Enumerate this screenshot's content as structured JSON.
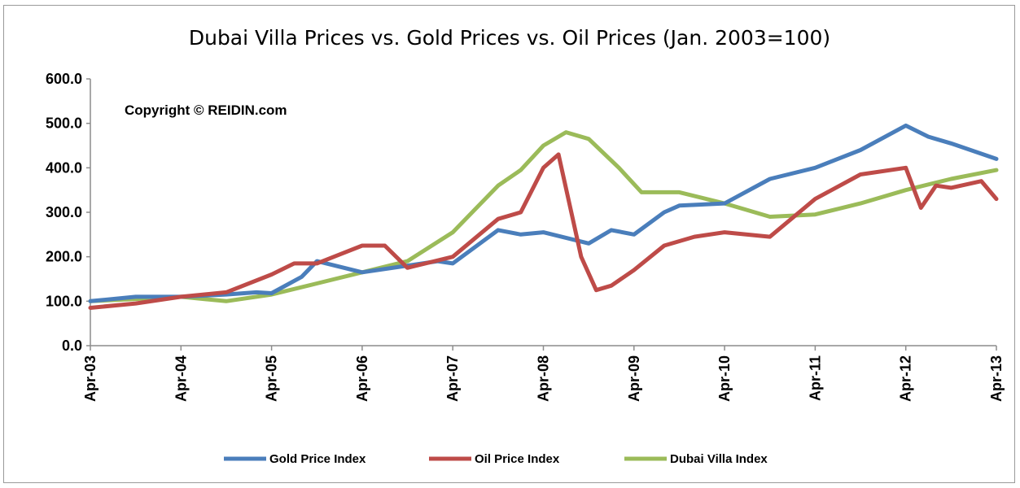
{
  "chart_data": {
    "type": "line",
    "title": "Dubai Villa Prices vs. Gold Prices vs. Oil Prices (Jan. 2003=100)",
    "annotation": "Copyright © REIDIN.com",
    "xlabel": "",
    "ylabel": "",
    "ylim": [
      0,
      600
    ],
    "y_ticks": [
      "0.0",
      "100.0",
      "200.0",
      "300.0",
      "400.0",
      "500.0",
      "600.0"
    ],
    "x_tick_labels": [
      "Apr-03",
      "Apr-04",
      "Apr-05",
      "Apr-06",
      "Apr-07",
      "Apr-08",
      "Apr-09",
      "Apr-10",
      "Apr-11",
      "Apr-12",
      "Apr-13"
    ],
    "x_range": [
      0,
      120
    ],
    "grid": false,
    "legend_position": "bottom",
    "series": [
      {
        "name": "Gold Price Index",
        "color": "#4a7ebb",
        "x": [
          0,
          6,
          12,
          18,
          22,
          24,
          28,
          30,
          36,
          42,
          46,
          48,
          54,
          57,
          60,
          66,
          69,
          72,
          76,
          78,
          84,
          90,
          96,
          102,
          108,
          111,
          114,
          120
        ],
        "y": [
          100,
          110,
          110,
          115,
          120,
          118,
          155,
          190,
          165,
          180,
          190,
          185,
          260,
          250,
          255,
          230,
          260,
          250,
          300,
          315,
          320,
          375,
          400,
          440,
          495,
          470,
          455,
          420
        ]
      },
      {
        "name": "Oil Price Index",
        "color": "#be4b48",
        "x": [
          0,
          6,
          12,
          18,
          24,
          27,
          30,
          33,
          36,
          39,
          42,
          48,
          54,
          57,
          60,
          62,
          65,
          67,
          69,
          72,
          76,
          80,
          84,
          90,
          96,
          102,
          108,
          110,
          112,
          114,
          118,
          120
        ],
        "y": [
          85,
          95,
          110,
          120,
          160,
          185,
          185,
          205,
          225,
          225,
          175,
          200,
          285,
          300,
          400,
          430,
          200,
          125,
          135,
          170,
          225,
          245,
          255,
          245,
          330,
          385,
          400,
          310,
          360,
          355,
          370,
          330
        ]
      },
      {
        "name": "Dubai Villa Index",
        "color": "#9bbb59",
        "x": [
          0,
          6,
          12,
          18,
          24,
          30,
          36,
          42,
          48,
          54,
          57,
          60,
          63,
          66,
          70,
          73,
          78,
          84,
          90,
          96,
          102,
          108,
          114,
          120
        ],
        "y": [
          100,
          105,
          110,
          100,
          115,
          140,
          165,
          190,
          255,
          360,
          395,
          450,
          480,
          465,
          400,
          345,
          345,
          320,
          290,
          295,
          320,
          350,
          375,
          395
        ]
      }
    ]
  }
}
